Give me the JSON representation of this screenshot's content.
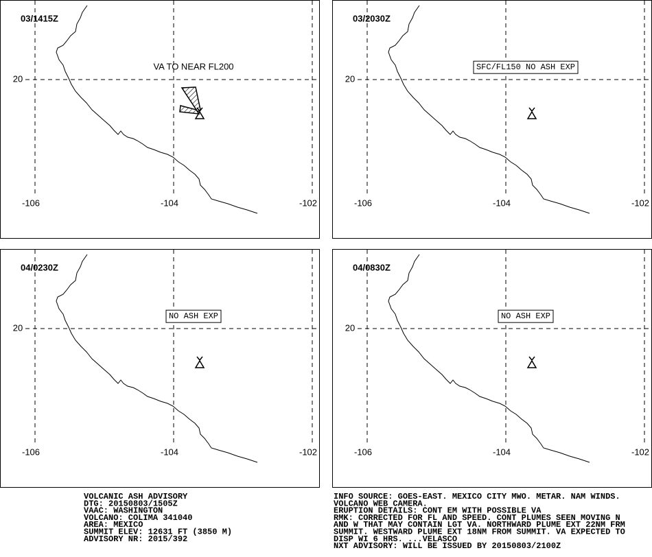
{
  "panels": [
    {
      "time": "03/1415Z",
      "annotation": "VA TO NEAR FL200",
      "annotation_boxed": false,
      "ash": true,
      "lat_label": "20",
      "lon_labels": [
        "-106",
        "-104",
        "-102"
      ]
    },
    {
      "time": "03/2030Z",
      "annotation": "SFC/FL150 NO ASH EXP",
      "annotation_boxed": true,
      "ash": false,
      "lat_label": "20",
      "lon_labels": [
        "-106",
        "-104",
        "-102"
      ]
    },
    {
      "time": "04/0230Z",
      "annotation": "NO ASH EXP",
      "annotation_boxed": true,
      "ash": false,
      "lat_label": "20",
      "lon_labels": [
        "-106",
        "-104",
        "-102"
      ]
    },
    {
      "time": "04/0830Z",
      "annotation": "NO ASH EXP",
      "annotation_boxed": true,
      "ash": false,
      "lat_label": "20",
      "lon_labels": [
        "-106",
        "-104",
        "-102"
      ]
    }
  ],
  "advisory_left": [
    "VOLCANIC ASH ADVISORY",
    "DTG: 20150803/1505Z",
    "VAAC: WASHINGTON",
    "VOLCANO: COLIMA 341040",
    "AREA: MEXICO",
    "SUMMIT ELEV: 12631 FT (3850 M)",
    "ADVISORY NR: 2015/392"
  ],
  "advisory_right": [
    "INFO SOURCE: GOES-EAST. MEXICO CITY MWO. METAR. NAM WINDS.",
    "VOLCANO WEB CAMERA.",
    "ERUPTION DETAILS: CONT EM WITH POSSIBLE VA",
    "RMK: CORRECTED FOR FL AND SPEED. CONT PLUMES SEEN MOVING N",
    "AND W THAT MAY CONTAIN LGT VA. NORTHWARD PLUME EXT 22NM FRM",
    "SUMMIT. WESTWARD PLUME EXT 18NM FROM SUMMIT. VA EXPECTED TO",
    "DISP WI 6 HRS. ...VELASCO",
    "NXT ADVISORY: WILL BE ISSUED BY 20150803/2100Z"
  ]
}
